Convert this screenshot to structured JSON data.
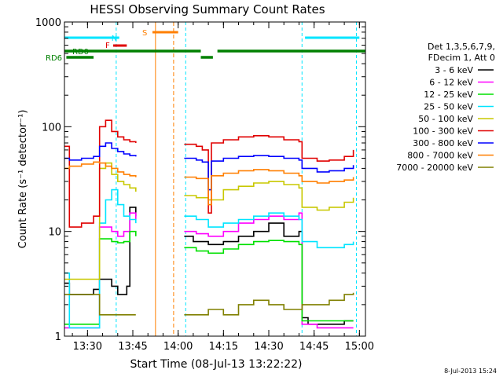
{
  "chart_data": {
    "type": "line",
    "title": "HESSI Observing Summary Count Rates",
    "xlabel": "Start Time (08-Jul-13 13:22:22)",
    "ylabel": "Count Rate (s⁻¹ detector⁻¹)",
    "yscale": "log",
    "ylim": [
      1,
      1000
    ],
    "xlim": [
      "13:22:22",
      "15:02:00"
    ],
    "x_ticks": [
      "13:30",
      "13:45",
      "14:00",
      "14:15",
      "14:30",
      "14:45",
      "15:00"
    ],
    "y_ticks": [
      "1",
      "10",
      "100",
      "1000"
    ],
    "footer_date": "8-Jul-2013 15:24",
    "legend_header": [
      "Det 1,3,5,6,7,9,",
      "FDecim 1, Att 0"
    ],
    "legend_position": "right",
    "flags": [
      {
        "label": "RD0",
        "color": "#008000",
        "segments": [
          [
            "13:22:22",
            "14:07:30"
          ],
          [
            "14:13:00",
            "15:02:00"
          ]
        ]
      },
      {
        "label": "RD6",
        "color": "#008000",
        "segments": [
          [
            "13:23:00",
            "13:32:00"
          ],
          [
            "14:07:30",
            "14:11:30"
          ]
        ]
      },
      {
        "label": "N",
        "color": "#00e5ff",
        "segments": [
          [
            "13:22:22",
            "13:40:30"
          ],
          [
            "14:42:00",
            "15:00:00"
          ]
        ]
      },
      {
        "label": "F",
        "color": "#e00000",
        "segments": [
          [
            "13:38:30",
            "13:43:00"
          ]
        ]
      },
      {
        "label": "S",
        "color": "#ff7f00",
        "segments": [
          [
            "13:51:30",
            "14:00:00"
          ]
        ]
      }
    ],
    "night_boundaries": [
      "13:22:22",
      "13:39:30",
      "14:02:30",
      "14:41:00",
      "14:59:00"
    ],
    "saa_boundaries": [
      "13:52:30",
      "13:58:30"
    ],
    "series": [
      {
        "name": "3 - 6 keV",
        "color": "#000000",
        "x": [
          "13:22:30",
          "13:24:00",
          "13:32:00",
          "13:34:00",
          "13:38:00",
          "13:40:00",
          "13:43:00",
          "13:44:00",
          "13:46:00",
          "14:02:00",
          "14:05:00",
          "14:10:00",
          "14:15:00",
          "14:20:00",
          "14:25:00",
          "14:30:00",
          "14:35:00",
          "14:40:00",
          "14:41:00",
          "14:43:00",
          "14:46:00",
          "14:50:00",
          "14:55:00",
          "14:58:00"
        ],
        "values": [
          3.2,
          2.5,
          2.8,
          3.5,
          3.0,
          2.5,
          3.0,
          17,
          14,
          9.0,
          8.0,
          7.5,
          8.0,
          9.0,
          10,
          12,
          9.0,
          10,
          1.5,
          1.3,
          1.3,
          1.3,
          1.4,
          1.4
        ]
      },
      {
        "name": "6 - 12 keV",
        "color": "#ff00ff",
        "x": [
          "13:22:30",
          "13:32:00",
          "13:34:00",
          "13:38:00",
          "13:40:00",
          "13:42:00",
          "13:44:00",
          "13:46:00",
          "14:02:00",
          "14:06:00",
          "14:10:00",
          "14:15:00",
          "14:20:00",
          "14:25:00",
          "14:30:00",
          "14:35:00",
          "14:40:00",
          "14:41:00",
          "14:46:00",
          "14:55:00",
          "14:58:00"
        ],
        "values": [
          1.2,
          1.2,
          11,
          10,
          9.0,
          10,
          15,
          13,
          10,
          9.5,
          9.0,
          10,
          12,
          13,
          14,
          13,
          15,
          1.3,
          1.2,
          1.2,
          1.2
        ]
      },
      {
        "name": "12 - 25 keV",
        "color": "#00e000",
        "x": [
          "13:22:30",
          "13:32:00",
          "13:34:00",
          "13:38:00",
          "13:40:00",
          "13:42:00",
          "13:44:00",
          "13:46:00",
          "14:02:00",
          "14:06:00",
          "14:10:00",
          "14:15:00",
          "14:20:00",
          "14:25:00",
          "14:30:00",
          "14:35:00",
          "14:40:00",
          "14:41:00",
          "14:46:00",
          "14:55:00",
          "14:58:00"
        ],
        "values": [
          1.3,
          1.3,
          8.5,
          8.0,
          7.8,
          8.0,
          10,
          9.0,
          7.0,
          6.5,
          6.2,
          6.8,
          7.5,
          8.0,
          8.2,
          8.0,
          7.5,
          1.4,
          1.4,
          1.4,
          1.4
        ]
      },
      {
        "name": "25 - 50 keV",
        "color": "#00e5ff",
        "x": [
          "13:22:30",
          "13:24:00",
          "13:32:00",
          "13:34:00",
          "13:36:00",
          "13:38:00",
          "13:40:00",
          "13:42:00",
          "13:44:00",
          "13:46:00",
          "14:02:00",
          "14:06:00",
          "14:10:00",
          "14:15:00",
          "14:20:00",
          "14:25:00",
          "14:30:00",
          "14:35:00",
          "14:40:00",
          "14:41:00",
          "14:46:00",
          "14:50:00",
          "14:55:00",
          "14:58:00"
        ],
        "values": [
          4.0,
          1.2,
          1.2,
          12,
          20,
          25,
          18,
          14,
          13,
          12,
          14,
          13,
          11,
          12,
          13,
          14,
          15,
          14,
          13,
          8.0,
          7.0,
          7.0,
          7.5,
          8.0
        ]
      },
      {
        "name": "50 - 100 keV",
        "color": "#c8c800",
        "x": [
          "13:22:30",
          "13:24:00",
          "13:28:00",
          "13:32:00",
          "13:34:00",
          "13:36:00",
          "13:38:00",
          "13:40:00",
          "13:42:00",
          "13:44:00",
          "13:46:00",
          "14:02:00",
          "14:06:00",
          "14:10:00",
          "14:15:00",
          "14:20:00",
          "14:25:00",
          "14:30:00",
          "14:35:00",
          "14:40:00",
          "14:41:00",
          "14:46:00",
          "14:50:00",
          "14:55:00",
          "14:58:00"
        ],
        "values": [
          3.5,
          3.5,
          3.5,
          3.5,
          40,
          45,
          35,
          30,
          28,
          26,
          24,
          22,
          21,
          20,
          25,
          27,
          29,
          30,
          28,
          26,
          17,
          16,
          17,
          19,
          21
        ]
      },
      {
        "name": "100 - 300 keV",
        "color": "#e00000",
        "x": [
          "13:22:30",
          "13:24:00",
          "13:28:00",
          "13:32:00",
          "13:34:00",
          "13:36:00",
          "13:38:00",
          "13:40:00",
          "13:42:00",
          "13:44:00",
          "13:46:00",
          "14:02:00",
          "14:06:00",
          "14:08:00",
          "14:10:00",
          "14:11:00",
          "14:15:00",
          "14:20:00",
          "14:25:00",
          "14:30:00",
          "14:35:00",
          "14:40:00",
          "14:41:00",
          "14:46:00",
          "14:50:00",
          "14:55:00",
          "14:58:00"
        ],
        "values": [
          65,
          11,
          12,
          14,
          100,
          115,
          90,
          80,
          75,
          72,
          70,
          68,
          65,
          60,
          15,
          70,
          75,
          80,
          82,
          80,
          75,
          72,
          50,
          47,
          48,
          52,
          60
        ]
      },
      {
        "name": "300 - 800 keV",
        "color": "#0000ff",
        "x": [
          "13:22:30",
          "13:24:00",
          "13:28:00",
          "13:32:00",
          "13:34:00",
          "13:36:00",
          "13:38:00",
          "13:40:00",
          "13:42:00",
          "13:44:00",
          "13:46:00",
          "14:02:00",
          "14:06:00",
          "14:08:00",
          "14:10:00",
          "14:11:00",
          "14:15:00",
          "14:20:00",
          "14:25:00",
          "14:30:00",
          "14:35:00",
          "14:40:00",
          "14:41:00",
          "14:46:00",
          "14:50:00",
          "14:55:00",
          "14:58:00"
        ],
        "values": [
          50,
          48,
          50,
          52,
          65,
          70,
          62,
          58,
          55,
          53,
          52,
          50,
          48,
          46,
          25,
          47,
          50,
          52,
          53,
          52,
          50,
          48,
          40,
          37,
          38,
          40,
          43
        ]
      },
      {
        "name": "800 - 7000 keV",
        "color": "#ff7f00",
        "x": [
          "13:22:30",
          "13:24:00",
          "13:28:00",
          "13:32:00",
          "13:34:00",
          "13:36:00",
          "13:38:00",
          "13:40:00",
          "13:42:00",
          "13:44:00",
          "13:46:00",
          "14:02:00",
          "14:06:00",
          "14:08:00",
          "14:10:00",
          "14:11:00",
          "14:15:00",
          "14:20:00",
          "14:25:00",
          "14:30:00",
          "14:35:00",
          "14:40:00",
          "14:41:00",
          "14:46:00",
          "14:50:00",
          "14:55:00",
          "14:58:00"
        ],
        "values": [
          40,
          42,
          44,
          46,
          45,
          42,
          40,
          37,
          35,
          34,
          33,
          33,
          32,
          32,
          18,
          34,
          36,
          38,
          39,
          38,
          36,
          34,
          30,
          29,
          30,
          31,
          33
        ]
      },
      {
        "name": "7000 - 20000 keV",
        "color": "#808000",
        "x": [
          "13:22:30",
          "13:24:00",
          "13:28:00",
          "13:32:00",
          "13:34:00",
          "13:38:00",
          "13:40:00",
          "13:44:00",
          "13:46:00",
          "14:02:00",
          "14:06:00",
          "14:10:00",
          "14:15:00",
          "14:20:00",
          "14:25:00",
          "14:30:00",
          "14:35:00",
          "14:40:00",
          "14:41:00",
          "14:46:00",
          "14:50:00",
          "14:55:00",
          "14:58:00"
        ],
        "values": [
          2.5,
          2.5,
          2.5,
          2.5,
          1.6,
          1.6,
          1.6,
          1.6,
          1.6,
          1.6,
          1.6,
          1.8,
          1.6,
          2.0,
          2.2,
          2.0,
          1.8,
          1.8,
          2.0,
          2.0,
          2.2,
          2.5,
          2.6
        ]
      }
    ]
  }
}
